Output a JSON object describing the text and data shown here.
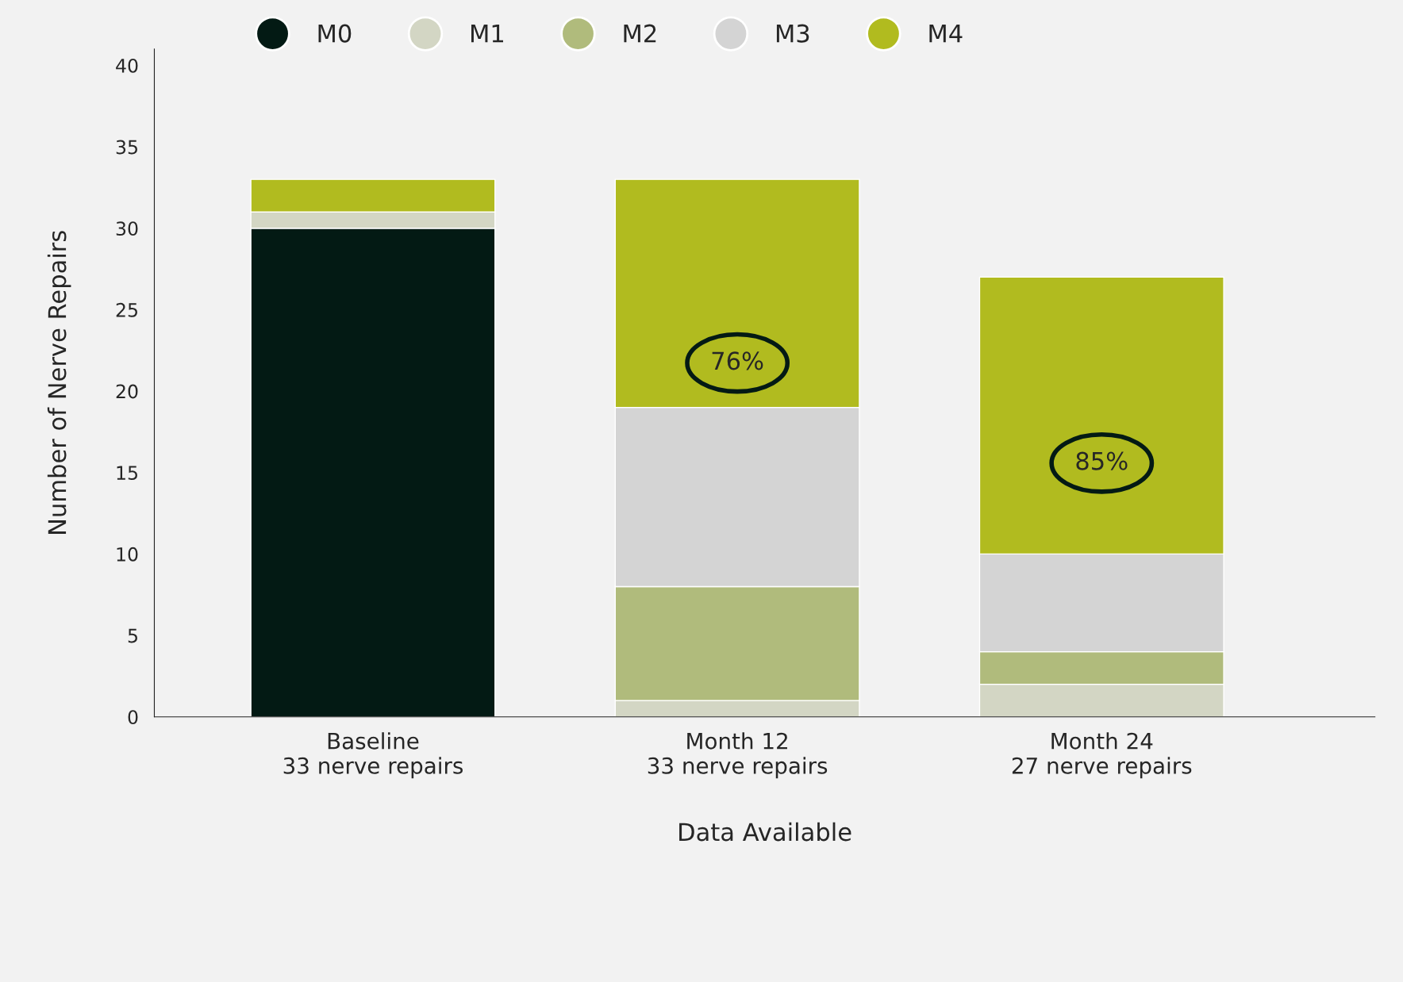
{
  "chart_data": {
    "type": "bar",
    "stacked": true,
    "categories": [
      "Baseline\n33 nerve repairs",
      "Month 12\n33 nerve repairs",
      "Month 24\n27 nerve repairs"
    ],
    "series": [
      {
        "name": "M0",
        "color": "#031a14",
        "values": [
          30,
          0,
          0
        ]
      },
      {
        "name": "M1",
        "color": "#d3d6c4",
        "values": [
          1,
          1,
          2
        ]
      },
      {
        "name": "M2",
        "color": "#b0bb7c",
        "values": [
          0,
          7,
          2
        ]
      },
      {
        "name": "M3",
        "color": "#d4d4d4",
        "values": [
          0,
          11,
          6
        ]
      },
      {
        "name": "M4",
        "color": "#b1bb1f",
        "values": [
          2,
          14,
          17
        ]
      }
    ],
    "xlabel": "Data Available",
    "ylabel": "Number of Nerve Repairs",
    "ylim": [
      0,
      41
    ],
    "yticks": [
      0,
      5,
      10,
      15,
      20,
      25,
      30,
      35,
      40
    ],
    "annotations": [
      "76%",
      "85%"
    ],
    "legend": "top",
    "grid": false
  }
}
